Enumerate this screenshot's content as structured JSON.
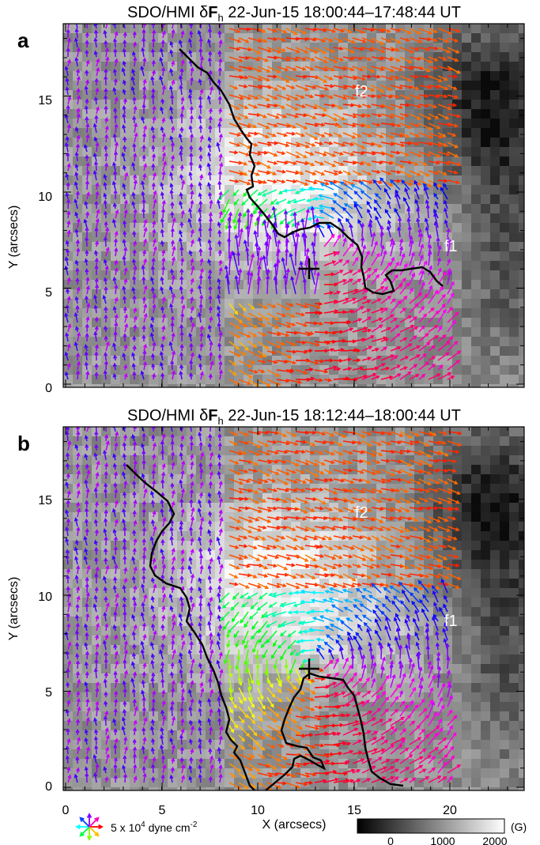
{
  "figure": {
    "panels": [
      {
        "label": "a",
        "title_prefix": "SDO/HMI δ",
        "title_bold": "F",
        "title_sub": "h",
        "title_rest": " 22-Jun-15 18:00:44–17:48:44 UT",
        "regions": [
          "f2",
          "f1"
        ]
      },
      {
        "label": "b",
        "title_prefix": "SDO/HMI δ",
        "title_bold": "F",
        "title_sub": "h",
        "title_rest": " 22-Jun-15 18:12:44–18:00:44 UT",
        "regions": [
          "f2",
          "f1"
        ]
      }
    ],
    "x_ticks": [
      "0",
      "5",
      "10",
      "15",
      "20"
    ],
    "y_ticks": [
      "0",
      "5",
      "10",
      "15"
    ],
    "xlabel": "X (arcsecs)",
    "ylabel": "Y (arcsecs)",
    "legend": {
      "text_a": "5 x 10",
      "text_exp": "4",
      "text_b": " dyne cm",
      "text_exp2": "-2"
    },
    "colorbar": {
      "unit": "(G)",
      "tick_labels": [
        "0",
        "1000",
        "2000"
      ]
    }
  },
  "chart_data": {
    "type": "heatmap",
    "description_kind": "magnetogram with horizontal Lorentz-force change vectors",
    "x_range": [
      0,
      24
    ],
    "y_range": [
      0,
      19
    ],
    "x_ticks": [
      0,
      5,
      10,
      15,
      20
    ],
    "y_ticks": [
      0,
      5,
      10,
      15
    ],
    "colorbar_range": [
      0,
      2000
    ],
    "colors": {
      "contour": "#000000",
      "marker": "#000000"
    }
  }
}
